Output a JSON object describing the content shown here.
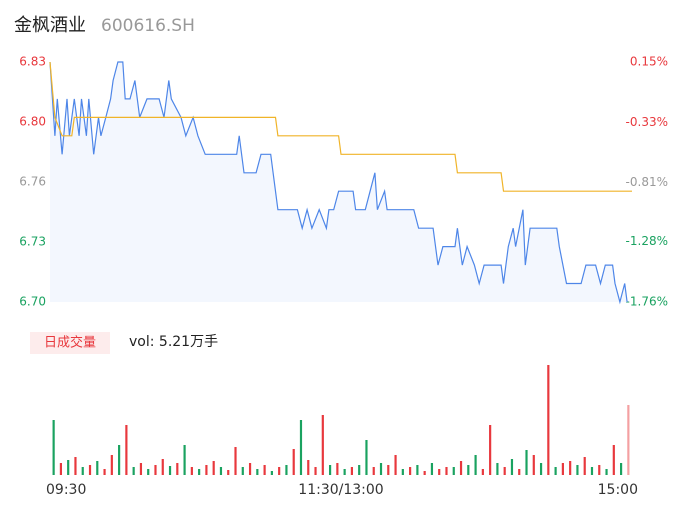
{
  "header": {
    "name": "金枫酒业",
    "code": "600616.SH"
  },
  "chart_data": [
    {
      "type": "line",
      "xlim": [
        0,
        240
      ],
      "ylim": [
        6.7,
        6.83
      ],
      "y2lim": [
        -1.76,
        0.15
      ],
      "xticks": [
        {
          "value": 0,
          "label": "09:30"
        },
        {
          "value": 120,
          "label": "11:30/13:00"
        },
        {
          "value": 240,
          "label": "15:00"
        }
      ],
      "yticks": [
        {
          "value": 6.83,
          "label": "6.83"
        },
        {
          "value": 6.7975,
          "label": "6.80"
        },
        {
          "value": 6.765,
          "label": "6.76"
        },
        {
          "value": 6.7325,
          "label": "6.73"
        },
        {
          "value": 6.7,
          "label": "6.70"
        }
      ],
      "y2ticks": [
        {
          "value": 0.15,
          "label": "0.15%"
        },
        {
          "value": -0.33,
          "label": "-0.33%"
        },
        {
          "value": -0.81,
          "label": "-0.81%"
        },
        {
          "value": -1.28,
          "label": "-1.28%"
        },
        {
          "value": -1.76,
          "label": "-1.76%"
        }
      ],
      "tick_colors": [
        "#e8383d",
        "#e8383d",
        "#999999",
        "#1aa260",
        "#1aa260"
      ],
      "series": [
        {
          "color": "#4e86e8",
          "x": [
            0,
            2,
            3,
            5,
            7,
            8,
            10,
            12,
            13,
            15,
            16,
            18,
            20,
            21,
            23,
            25,
            26,
            28,
            30,
            31,
            33,
            35,
            37,
            40,
            45,
            47,
            49,
            50,
            54,
            56,
            59,
            61,
            64,
            77,
            78,
            80,
            85,
            87,
            91,
            92,
            94,
            102,
            104,
            106,
            108,
            111,
            114,
            115,
            117,
            119,
            125,
            126,
            130,
            132,
            134,
            135,
            138,
            139,
            150,
            152,
            158,
            160,
            162,
            167,
            168,
            170,
            172,
            175,
            177,
            179,
            186,
            187,
            189,
            191,
            192,
            195,
            196,
            198,
            209,
            210,
            213,
            219,
            221,
            225,
            227,
            229,
            232,
            233,
            235,
            237,
            238
          ],
          "values": [
            6.83,
            6.79,
            6.81,
            6.78,
            6.81,
            6.79,
            6.81,
            6.79,
            6.81,
            6.79,
            6.81,
            6.78,
            6.8,
            6.79,
            6.8,
            6.81,
            6.82,
            6.83,
            6.83,
            6.81,
            6.81,
            6.82,
            6.8,
            6.81,
            6.81,
            6.8,
            6.82,
            6.81,
            6.8,
            6.79,
            6.8,
            6.79,
            6.78,
            6.78,
            6.79,
            6.77,
            6.77,
            6.78,
            6.78,
            6.77,
            6.75,
            6.75,
            6.74,
            6.75,
            6.74,
            6.75,
            6.74,
            6.75,
            6.75,
            6.76,
            6.76,
            6.75,
            6.75,
            6.76,
            6.77,
            6.75,
            6.76,
            6.75,
            6.75,
            6.74,
            6.74,
            6.72,
            6.73,
            6.73,
            6.74,
            6.72,
            6.73,
            6.72,
            6.71,
            6.72,
            6.72,
            6.71,
            6.73,
            6.74,
            6.73,
            6.75,
            6.72,
            6.74,
            6.74,
            6.73,
            6.71,
            6.71,
            6.72,
            6.72,
            6.71,
            6.72,
            6.72,
            6.71,
            6.7,
            6.71,
            6.7
          ]
        },
        {
          "color": "#f0b429",
          "x": [
            0,
            2,
            5,
            9,
            10,
            93,
            94,
            119,
            120,
            167,
            168,
            186,
            187,
            240
          ],
          "values": [
            6.83,
            6.8,
            6.79,
            6.79,
            6.8,
            6.8,
            6.79,
            6.79,
            6.78,
            6.78,
            6.77,
            6.77,
            6.76,
            6.76
          ]
        }
      ]
    },
    {
      "type": "bar",
      "badge": "日成交量",
      "label": "vol: 5.21万手",
      "ylim": [
        0,
        110
      ],
      "values": [
        55,
        12,
        15,
        18,
        8,
        10,
        14,
        6,
        20,
        30,
        50,
        8,
        12,
        6,
        10,
        16,
        9,
        12,
        30,
        8,
        6,
        10,
        14,
        8,
        5,
        28,
        8,
        12,
        6,
        10,
        4,
        8,
        10,
        26,
        55,
        15,
        8,
        60,
        10,
        12,
        6,
        8,
        10,
        35,
        8,
        12,
        10,
        20,
        6,
        8,
        10,
        4,
        12,
        6,
        8,
        8,
        14,
        10,
        20,
        6,
        50,
        12,
        8,
        16,
        6,
        25,
        20,
        12,
        110,
        8,
        12,
        14,
        10,
        18,
        8,
        10,
        6,
        30,
        12,
        70
      ],
      "colors": [
        "#1aa260",
        "#e8383d",
        "#1aa260",
        "#e8383d",
        "#1aa260",
        "#e8383d",
        "#1aa260",
        "#e8383d",
        "#e8383d",
        "#1aa260",
        "#e8383d",
        "#1aa260",
        "#e8383d",
        "#1aa260",
        "#e8383d",
        "#e8383d",
        "#1aa260",
        "#e8383d",
        "#1aa260",
        "#e8383d",
        "#1aa260",
        "#e8383d",
        "#e8383d",
        "#1aa260",
        "#e8383d",
        "#e8383d",
        "#1aa260",
        "#e8383d",
        "#1aa260",
        "#e8383d",
        "#1aa260",
        "#e8383d",
        "#1aa260",
        "#e8383d",
        "#1aa260",
        "#e8383d",
        "#e8383d",
        "#e8383d",
        "#1aa260",
        "#e8383d",
        "#1aa260",
        "#e8383d",
        "#1aa260",
        "#1aa260",
        "#e8383d",
        "#1aa260",
        "#e8383d",
        "#e8383d",
        "#1aa260",
        "#e8383d",
        "#1aa260",
        "#e8383d",
        "#1aa260",
        "#e8383d",
        "#e8383d",
        "#1aa260",
        "#e8383d",
        "#1aa260",
        "#1aa260",
        "#e8383d",
        "#e8383d",
        "#1aa260",
        "#e8383d",
        "#1aa260",
        "#e8383d",
        "#1aa260",
        "#e8383d",
        "#1aa260",
        "#e8383d",
        "#1aa260",
        "#e8383d",
        "#e8383d",
        "#1aa260",
        "#e8383d",
        "#1aa260",
        "#e8383d",
        "#1aa260",
        "#e8383d",
        "#1aa260",
        "#f4a0a2"
      ]
    }
  ]
}
